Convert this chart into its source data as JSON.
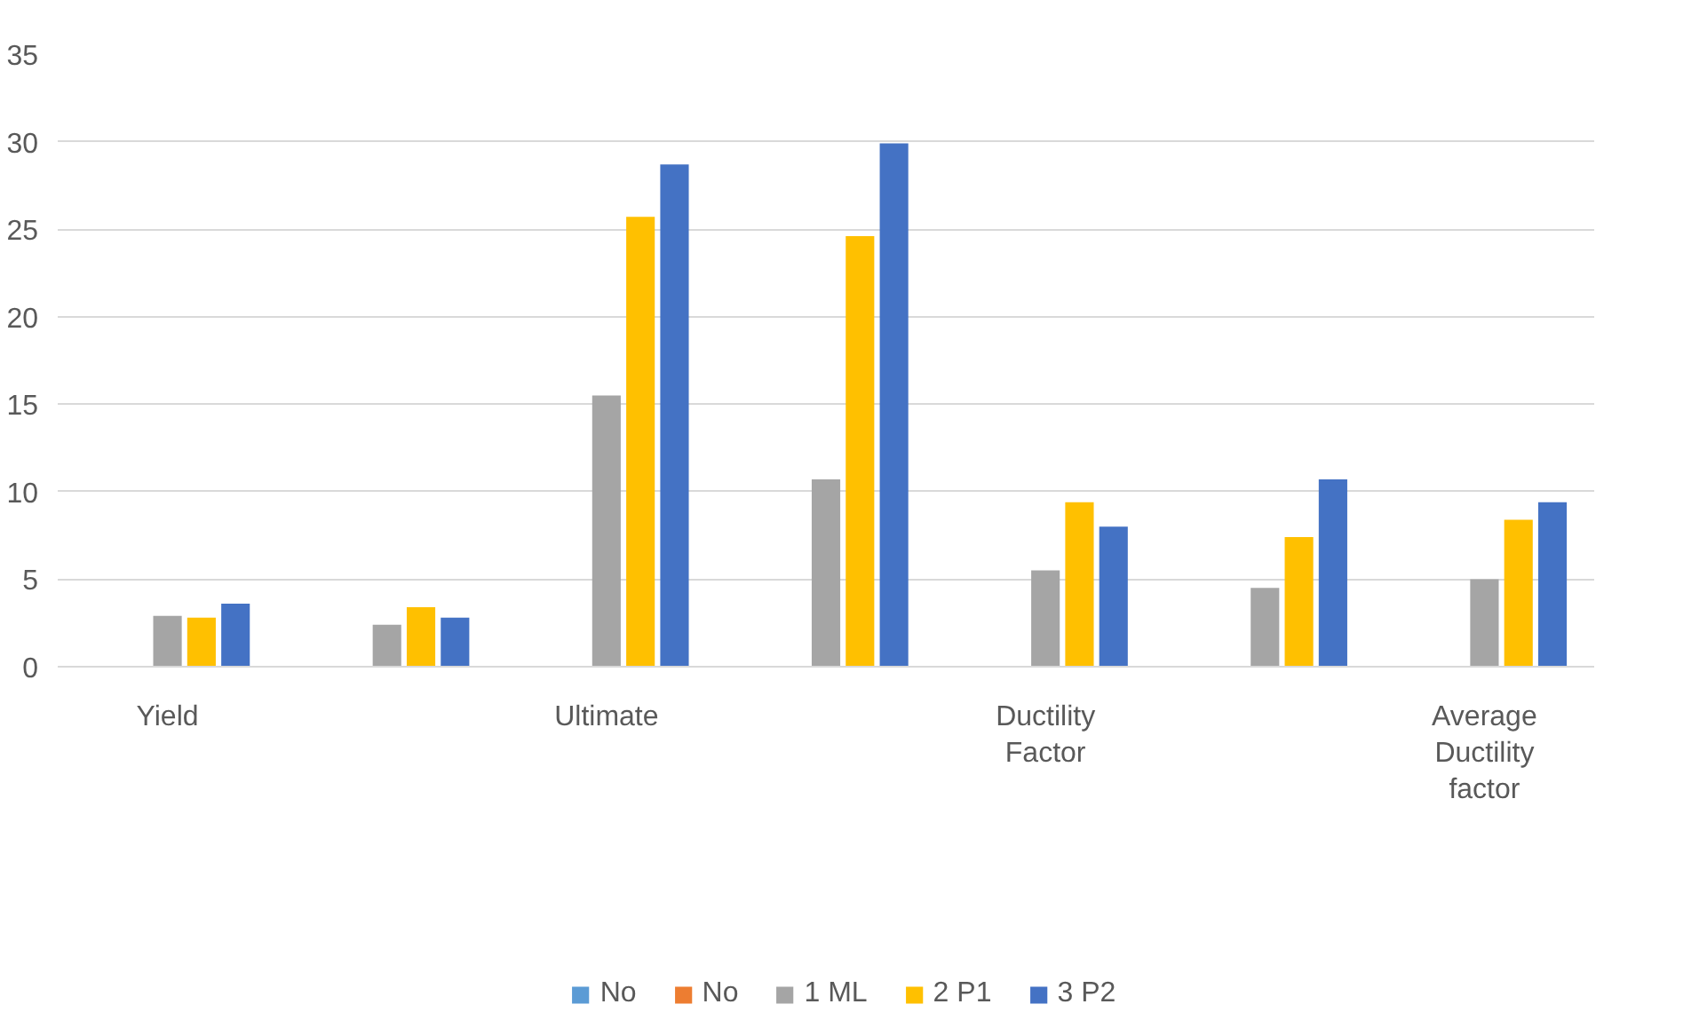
{
  "chart_data": {
    "type": "bar",
    "categories": [
      "Yield",
      null,
      "Ultimate",
      null,
      "Ductility Factor",
      null,
      "Average Ductility factor"
    ],
    "series": [
      {
        "name": "No",
        "color": "#5b9bd5",
        "values": [
          null,
          null,
          null,
          null,
          null,
          null,
          null
        ]
      },
      {
        "name": "No",
        "color": "#ed7d31",
        "values": [
          null,
          null,
          null,
          null,
          null,
          null,
          null
        ]
      },
      {
        "name": "1 ML",
        "color": "#a5a5a5",
        "values": [
          2.9,
          2.4,
          15.5,
          10.7,
          5.5,
          4.5,
          5.0
        ]
      },
      {
        "name": "2 P1",
        "color": "#ffc000",
        "values": [
          2.8,
          3.4,
          25.7,
          24.6,
          9.4,
          7.4,
          8.4
        ]
      },
      {
        "name": "3 P2",
        "color": "#4472c4",
        "values": [
          3.6,
          2.8,
          28.7,
          29.9,
          8.0,
          10.7,
          9.4
        ]
      }
    ],
    "ylim": [
      0,
      35
    ],
    "yticks": [
      0,
      5,
      10,
      15,
      20,
      25,
      30,
      35
    ],
    "grid": "y",
    "legend": "bottom"
  }
}
